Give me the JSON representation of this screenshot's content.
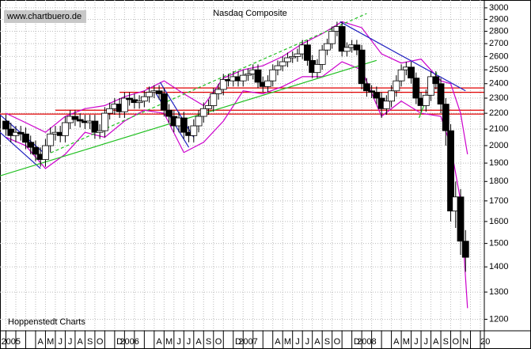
{
  "chart_data": {
    "type": "candlestick",
    "title": "Nasdaq Composite",
    "watermark": "www.chartbuero.de",
    "source": "Hoppenstedt Charts",
    "log_scale": true,
    "grid": true,
    "ylim": [
      1160,
      3070
    ],
    "xlim": [
      -0.6,
      48.4
    ],
    "yticks": [
      1200,
      1300,
      1400,
      1500,
      1600,
      1700,
      1800,
      1900,
      2000,
      2100,
      2200,
      2300,
      2400,
      2500,
      2600,
      2700,
      2800,
      2900,
      3000
    ],
    "month_labels": [
      "2005",
      null,
      null,
      "A",
      "M",
      "J",
      "J",
      "A",
      "S",
      "O",
      null,
      "D",
      "2006",
      null,
      null,
      "A",
      "M",
      "J",
      "J",
      "A",
      "S",
      "O",
      null,
      "D",
      "2007",
      null,
      null,
      "A",
      "M",
      "J",
      "J",
      "A",
      "S",
      "O",
      null,
      "D",
      "2008",
      null,
      null,
      "A",
      "M",
      "J",
      "J",
      "A",
      "S",
      "O",
      "N",
      null,
      "20"
    ],
    "up_color": "#ffffff",
    "down_color": "#000000",
    "x": [
      0,
      0.5,
      1,
      1.5,
      2,
      2.5,
      3,
      3.5,
      4,
      4.5,
      5,
      5.5,
      6,
      6.5,
      7,
      7.5,
      8,
      8.5,
      9,
      9.5,
      10,
      10.5,
      11,
      11.5,
      12,
      12.5,
      13,
      13.5,
      14,
      14.5,
      15,
      15.5,
      16,
      16.5,
      17,
      17.5,
      18,
      18.5,
      19,
      19.5,
      20,
      20.5,
      21,
      21.5,
      22,
      22.5,
      23,
      23.5,
      24,
      24.5,
      25,
      25.5,
      26,
      26.5,
      27,
      27.5,
      28,
      28.5,
      29,
      29.5,
      30,
      30.5,
      31,
      31.5,
      32,
      32.5,
      33,
      33.5,
      34,
      34.5,
      35,
      35.5,
      36,
      36.5,
      37,
      37.5,
      38,
      38.5,
      39,
      39.5,
      40,
      40.5,
      41,
      41.5,
      42,
      42.5,
      43,
      43.5,
      44,
      44.5,
      45,
      45.5,
      46,
      46.5
    ],
    "open": [
      2150,
      2100,
      2060,
      2080,
      2070,
      2020,
      1990,
      1950,
      1920,
      2000,
      2070,
      2080,
      2060,
      2140,
      2180,
      2160,
      2150,
      2140,
      2150,
      2080,
      2090,
      2200,
      2230,
      2260,
      2210,
      2300,
      2290,
      2270,
      2280,
      2310,
      2340,
      2350,
      2330,
      2220,
      2180,
      2120,
      2170,
      2080,
      2060,
      2120,
      2180,
      2230,
      2250,
      2330,
      2360,
      2430,
      2420,
      2450,
      2420,
      2460,
      2470,
      2500,
      2410,
      2380,
      2420,
      2500,
      2530,
      2560,
      2590,
      2600,
      2620,
      2690,
      2570,
      2480,
      2540,
      2650,
      2700,
      2800,
      2840,
      2640,
      2670,
      2690,
      2650,
      2400,
      2350,
      2340,
      2300,
      2230,
      2280,
      2350,
      2420,
      2500,
      2520,
      2440,
      2300,
      2250,
      2320,
      2450,
      2400,
      2260,
      2090,
      1650,
      1720,
      1510
    ],
    "high": [
      2190,
      2140,
      2120,
      2120,
      2110,
      2060,
      2030,
      1990,
      2040,
      2110,
      2120,
      2120,
      2180,
      2220,
      2220,
      2200,
      2190,
      2190,
      2190,
      2130,
      2240,
      2270,
      2300,
      2300,
      2340,
      2340,
      2330,
      2320,
      2350,
      2380,
      2390,
      2390,
      2370,
      2260,
      2220,
      2210,
      2210,
      2120,
      2160,
      2220,
      2270,
      2290,
      2370,
      2400,
      2470,
      2470,
      2490,
      2490,
      2500,
      2510,
      2540,
      2540,
      2450,
      2460,
      2540,
      2570,
      2600,
      2630,
      2640,
      2660,
      2730,
      2730,
      2610,
      2580,
      2690,
      2740,
      2840,
      2880,
      2880,
      2710,
      2730,
      2730,
      2690,
      2440,
      2390,
      2380,
      2340,
      2320,
      2390,
      2460,
      2540,
      2560,
      2560,
      2480,
      2340,
      2360,
      2490,
      2490,
      2440,
      2300,
      2130,
      1800,
      1760,
      1560
    ],
    "low": [
      2060,
      2020,
      2020,
      2030,
      1980,
      1950,
      1910,
      1880,
      1880,
      1960,
      2030,
      2020,
      2020,
      2100,
      2120,
      2110,
      2100,
      2100,
      2040,
      2040,
      2050,
      2160,
      2190,
      2170,
      2170,
      2250,
      2230,
      2230,
      2240,
      2270,
      2300,
      2290,
      2180,
      2140,
      2080,
      2080,
      2040,
      2020,
      2020,
      2080,
      2140,
      2190,
      2210,
      2290,
      2320,
      2380,
      2380,
      2380,
      2380,
      2420,
      2430,
      2370,
      2340,
      2340,
      2380,
      2460,
      2490,
      2520,
      2550,
      2560,
      2580,
      2530,
      2440,
      2440,
      2500,
      2610,
      2660,
      2760,
      2600,
      2600,
      2630,
      2610,
      2360,
      2310,
      2300,
      2260,
      2170,
      2190,
      2240,
      2310,
      2380,
      2460,
      2400,
      2260,
      2210,
      2210,
      2280,
      2360,
      2200,
      2000,
      1600,
      1570,
      1450,
      1380
    ],
    "close": [
      2100,
      2060,
      2080,
      2070,
      2020,
      1990,
      1950,
      1920,
      2000,
      2070,
      2080,
      2060,
      2140,
      2180,
      2160,
      2150,
      2140,
      2150,
      2080,
      2090,
      2200,
      2230,
      2260,
      2210,
      2300,
      2290,
      2270,
      2280,
      2310,
      2340,
      2350,
      2330,
      2220,
      2180,
      2120,
      2170,
      2080,
      2060,
      2120,
      2180,
      2230,
      2250,
      2330,
      2360,
      2430,
      2420,
      2450,
      2420,
      2460,
      2470,
      2500,
      2410,
      2380,
      2420,
      2500,
      2530,
      2560,
      2590,
      2600,
      2620,
      2690,
      2570,
      2480,
      2540,
      2650,
      2700,
      2800,
      2840,
      2640,
      2670,
      2690,
      2650,
      2400,
      2350,
      2340,
      2300,
      2230,
      2280,
      2350,
      2420,
      2500,
      2520,
      2440,
      2300,
      2250,
      2320,
      2450,
      2400,
      2260,
      2090,
      1650,
      1720,
      1510,
      1440
    ],
    "bands": {
      "color": "#cc00cc",
      "x": [
        0,
        2,
        4,
        6,
        8,
        10,
        12,
        14,
        16,
        18,
        20,
        22,
        24,
        26,
        28,
        30,
        32,
        34,
        36,
        38,
        40,
        42,
        44,
        45,
        46,
        46.7
      ],
      "upper": [
        2200,
        2140,
        2080,
        2180,
        2230,
        2250,
        2310,
        2350,
        2420,
        2330,
        2250,
        2440,
        2500,
        2530,
        2600,
        2700,
        2780,
        2880,
        2830,
        2620,
        2550,
        2580,
        2420,
        2400,
        2200,
        1950
      ],
      "lower": [
        2050,
        2000,
        1870,
        1950,
        2080,
        2050,
        2150,
        2220,
        2200,
        1960,
        2020,
        2150,
        2350,
        2330,
        2380,
        2450,
        2450,
        2560,
        2500,
        2180,
        2280,
        2200,
        2180,
        2000,
        1700,
        1240
      ]
    },
    "horizontal_lines": {
      "color": "#e00000",
      "from_x": [
        -0.6,
        5,
        11.5,
        14.2
      ],
      "values": [
        2195,
        2220,
        2340,
        2370
      ]
    },
    "trend_lines": [
      {
        "color": "#2020c0",
        "dashed": false,
        "x": [
          -0.6,
          4.2
        ],
        "y": [
          2190,
          1940
        ]
      },
      {
        "color": "#2020c0",
        "dashed": false,
        "x": [
          -0.6,
          3.5
        ],
        "y": [
          2080,
          1870
        ]
      },
      {
        "color": "#2020c0",
        "dashed": false,
        "x": [
          15.6,
          19
        ],
        "y": [
          2410,
          2050
        ]
      },
      {
        "color": "#2020c0",
        "dashed": false,
        "x": [
          15.2,
          18.5
        ],
        "y": [
          2330,
          1990
        ]
      },
      {
        "color": "#2020c0",
        "dashed": false,
        "x": [
          33.8,
          46.5
        ],
        "y": [
          2880,
          2350
        ]
      },
      {
        "color": "#20c020",
        "dashed": false,
        "x": [
          -0.6,
          37.5
        ],
        "y": [
          1830,
          2570
        ]
      },
      {
        "color": "#20c020",
        "dashed": true,
        "x": [
          3,
          36.5
        ],
        "y": [
          1920,
          2950
        ]
      },
      {
        "color": "#20c020",
        "dashed": false,
        "x": [
          41.8,
          43.6
        ],
        "y": [
          2170,
          2480
        ]
      }
    ]
  }
}
